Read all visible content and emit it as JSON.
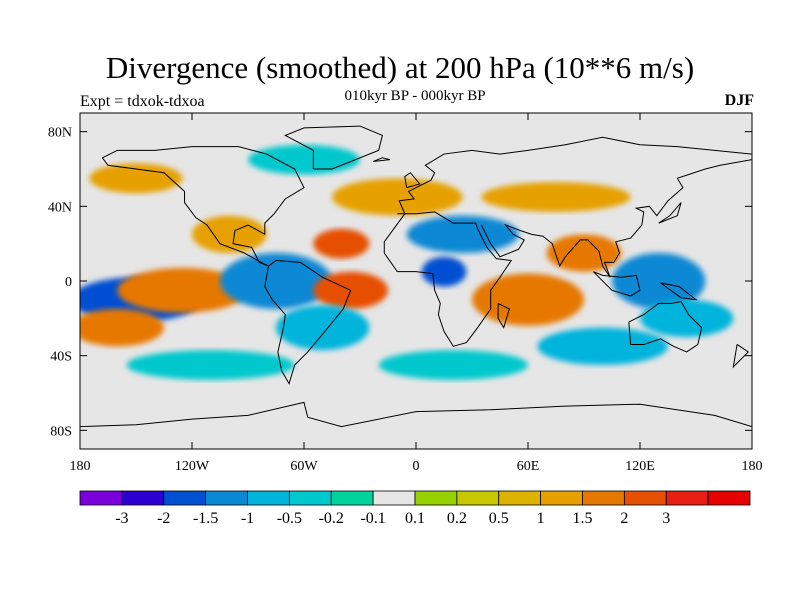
{
  "title": "Divergence (smoothed) at 200 hPa (10**6 m/s)",
  "subtitle": "010kyr BP - 000kyr BP",
  "left_string": "Expt = tdxok-tdxoa",
  "right_string": "DJF",
  "map": {
    "projection": "cylindrical equidistant",
    "lon_range": [
      -180,
      180
    ],
    "lat_range": [
      -90,
      90
    ],
    "lon_ticks": [
      {
        "lon": -180,
        "label": "180"
      },
      {
        "lon": -120,
        "label": "120W"
      },
      {
        "lon": -60,
        "label": "60W"
      },
      {
        "lon": 0,
        "label": "0"
      },
      {
        "lon": 60,
        "label": "60E"
      },
      {
        "lon": 120,
        "label": "120E"
      },
      {
        "lon": 180,
        "label": "180"
      }
    ],
    "lat_ticks": [
      {
        "lat": 80,
        "label": "80N"
      },
      {
        "lat": 40,
        "label": "40N"
      },
      {
        "lat": 0,
        "label": "0"
      },
      {
        "lat": -40,
        "label": "40S"
      },
      {
        "lat": -80,
        "label": "80S"
      }
    ],
    "background_color": "#e6e6e6",
    "coastline_color": "#000000"
  },
  "colorbar": {
    "colors": [
      "#7a00dc",
      "#2d00d2",
      "#0050d2",
      "#0a88d4",
      "#00b4dc",
      "#00c8cd",
      "#00d29b",
      "#e6e6e6",
      "#96d200",
      "#c8c800",
      "#dcb400",
      "#e6a000",
      "#e67800",
      "#e65000",
      "#e61e14",
      "#e60000"
    ],
    "labels": [
      "-3",
      "-2",
      "-1.5",
      "-1",
      "-0.5",
      "-0.2",
      "-0.1",
      "0.1",
      "0.2",
      "0.5",
      "1",
      "1.5",
      "2",
      "3"
    ]
  },
  "field_blobs": [
    {
      "lon": -160,
      "lat": -10,
      "rx": 18,
      "ry": 6,
      "level": 1
    },
    {
      "lon": -150,
      "lat": -10,
      "rx": 35,
      "ry": 12,
      "level": 2
    },
    {
      "lon": -120,
      "lat": -5,
      "rx": 20,
      "ry": 6,
      "level": 14
    },
    {
      "lon": -125,
      "lat": -5,
      "rx": 35,
      "ry": 12,
      "level": 12
    },
    {
      "lon": -160,
      "lat": -25,
      "rx": 25,
      "ry": 10,
      "level": 12
    },
    {
      "lon": -75,
      "lat": 0,
      "rx": 20,
      "ry": 10,
      "level": 1
    },
    {
      "lon": -75,
      "lat": 0,
      "rx": 30,
      "ry": 15,
      "level": 3
    },
    {
      "lon": -35,
      "lat": -5,
      "rx": 20,
      "ry": 10,
      "level": 13
    },
    {
      "lon": -50,
      "lat": -25,
      "rx": 25,
      "ry": 12,
      "level": 4
    },
    {
      "lon": -100,
      "lat": 25,
      "rx": 20,
      "ry": 10,
      "level": 11
    },
    {
      "lon": -40,
      "lat": 20,
      "rx": 15,
      "ry": 8,
      "level": 13
    },
    {
      "lon": 25,
      "lat": 25,
      "rx": 30,
      "ry": 10,
      "level": 3
    },
    {
      "lon": 15,
      "lat": 5,
      "rx": 12,
      "ry": 8,
      "level": 2
    },
    {
      "lon": 60,
      "lat": -10,
      "rx": 20,
      "ry": 8,
      "level": 14
    },
    {
      "lon": 60,
      "lat": -10,
      "rx": 30,
      "ry": 14,
      "level": 12
    },
    {
      "lon": 90,
      "lat": 15,
      "rx": 20,
      "ry": 10,
      "level": 12
    },
    {
      "lon": 130,
      "lat": 0,
      "rx": 15,
      "ry": 8,
      "level": 1
    },
    {
      "lon": 130,
      "lat": 0,
      "rx": 25,
      "ry": 15,
      "level": 3
    },
    {
      "lon": 145,
      "lat": -20,
      "rx": 25,
      "ry": 10,
      "level": 4
    },
    {
      "lon": 100,
      "lat": -35,
      "rx": 35,
      "ry": 10,
      "level": 4
    },
    {
      "lon": -110,
      "lat": -45,
      "rx": 45,
      "ry": 8,
      "level": 5
    },
    {
      "lon": 20,
      "lat": -45,
      "rx": 40,
      "ry": 8,
      "level": 5
    },
    {
      "lon": -10,
      "lat": 45,
      "rx": 35,
      "ry": 10,
      "level": 11
    },
    {
      "lon": 75,
      "lat": 45,
      "rx": 40,
      "ry": 8,
      "level": 11
    },
    {
      "lon": -60,
      "lat": 65,
      "rx": 30,
      "ry": 8,
      "level": 5
    },
    {
      "lon": -150,
      "lat": 55,
      "rx": 25,
      "ry": 8,
      "level": 11
    }
  ]
}
